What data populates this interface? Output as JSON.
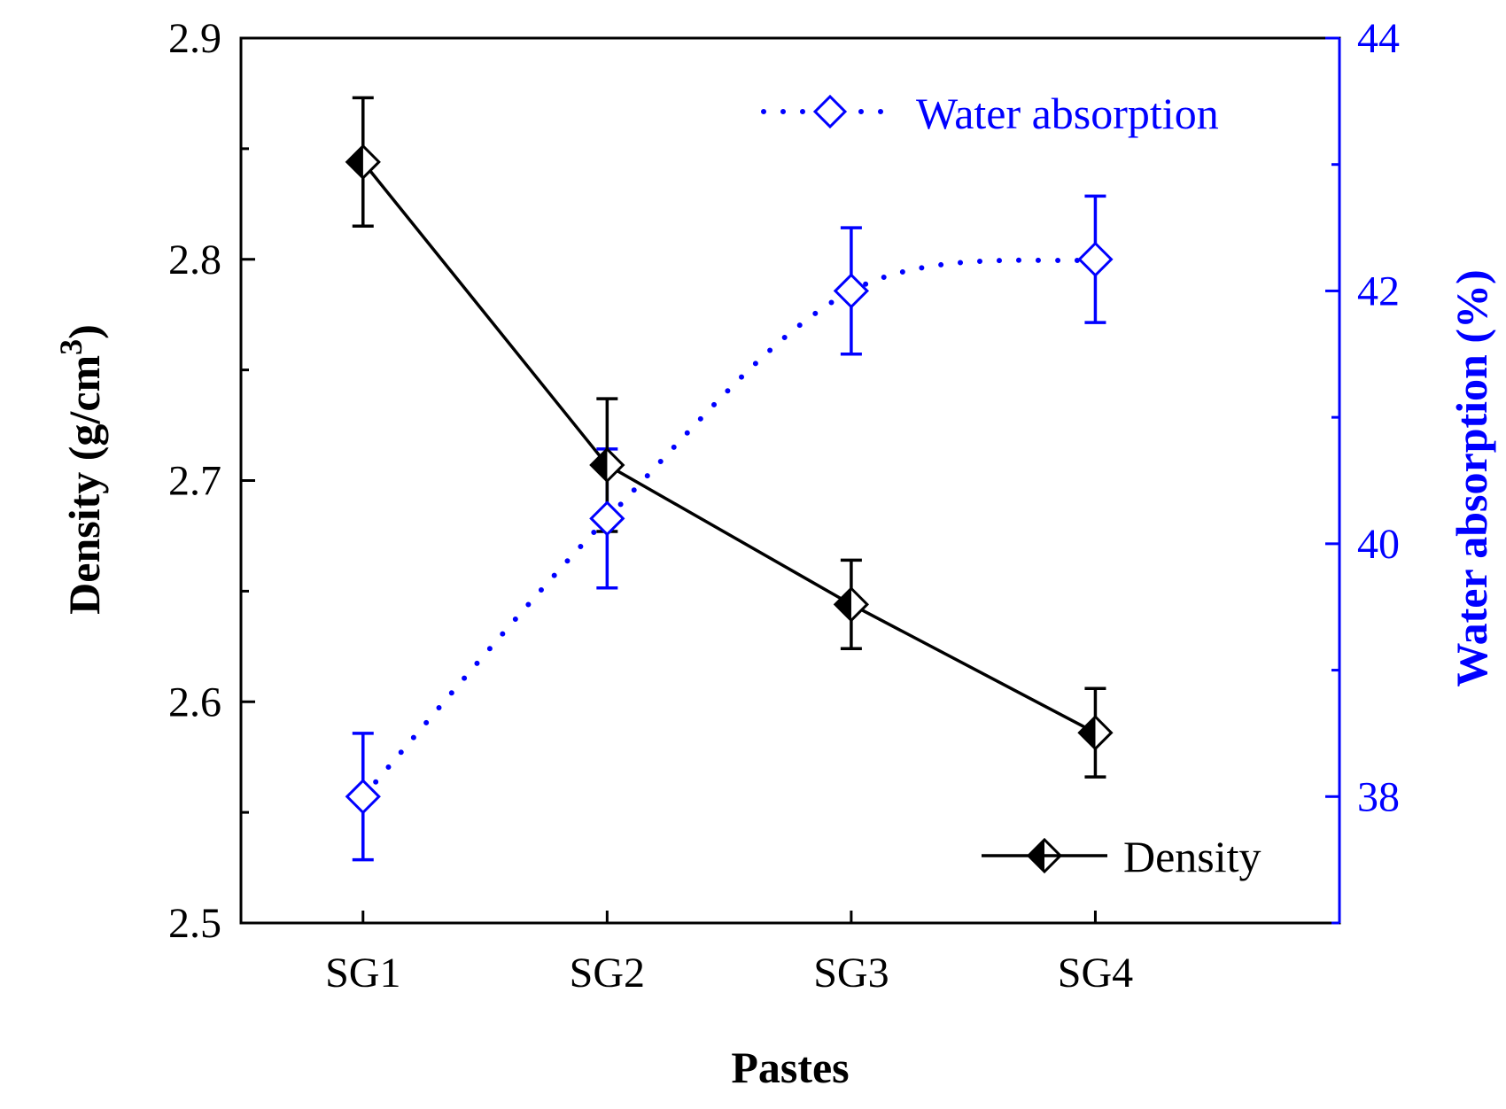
{
  "chart_data": {
    "type": "line",
    "categories": [
      "SG1",
      "SG2",
      "SG3",
      "SG4"
    ],
    "xlabel": "Pastes",
    "ylabel_left": {
      "main": "Density (g/cm",
      "sup": "3",
      "close": ")"
    },
    "ylabel_right": "Water absorption (%)",
    "ylim_left": [
      2.5,
      2.9
    ],
    "ylim_right": [
      37,
      44
    ],
    "yticks_left": [
      "2.5",
      "2.6",
      "2.7",
      "2.8",
      "2.9"
    ],
    "yticks_right": [
      "38",
      "40",
      "42",
      "44"
    ],
    "colors": {
      "density": "#000000",
      "water": "#0000ff"
    },
    "series": [
      {
        "name": "Density",
        "axis": "left",
        "values": [
          2.844,
          2.707,
          2.644,
          2.586
        ],
        "errors": [
          0.029,
          0.03,
          0.02,
          0.02
        ]
      },
      {
        "name": "Water absorption",
        "axis": "right",
        "values": [
          38.0,
          40.2,
          42.0,
          42.25
        ],
        "errors": [
          0.5,
          0.55,
          0.5,
          0.5
        ]
      }
    ]
  }
}
